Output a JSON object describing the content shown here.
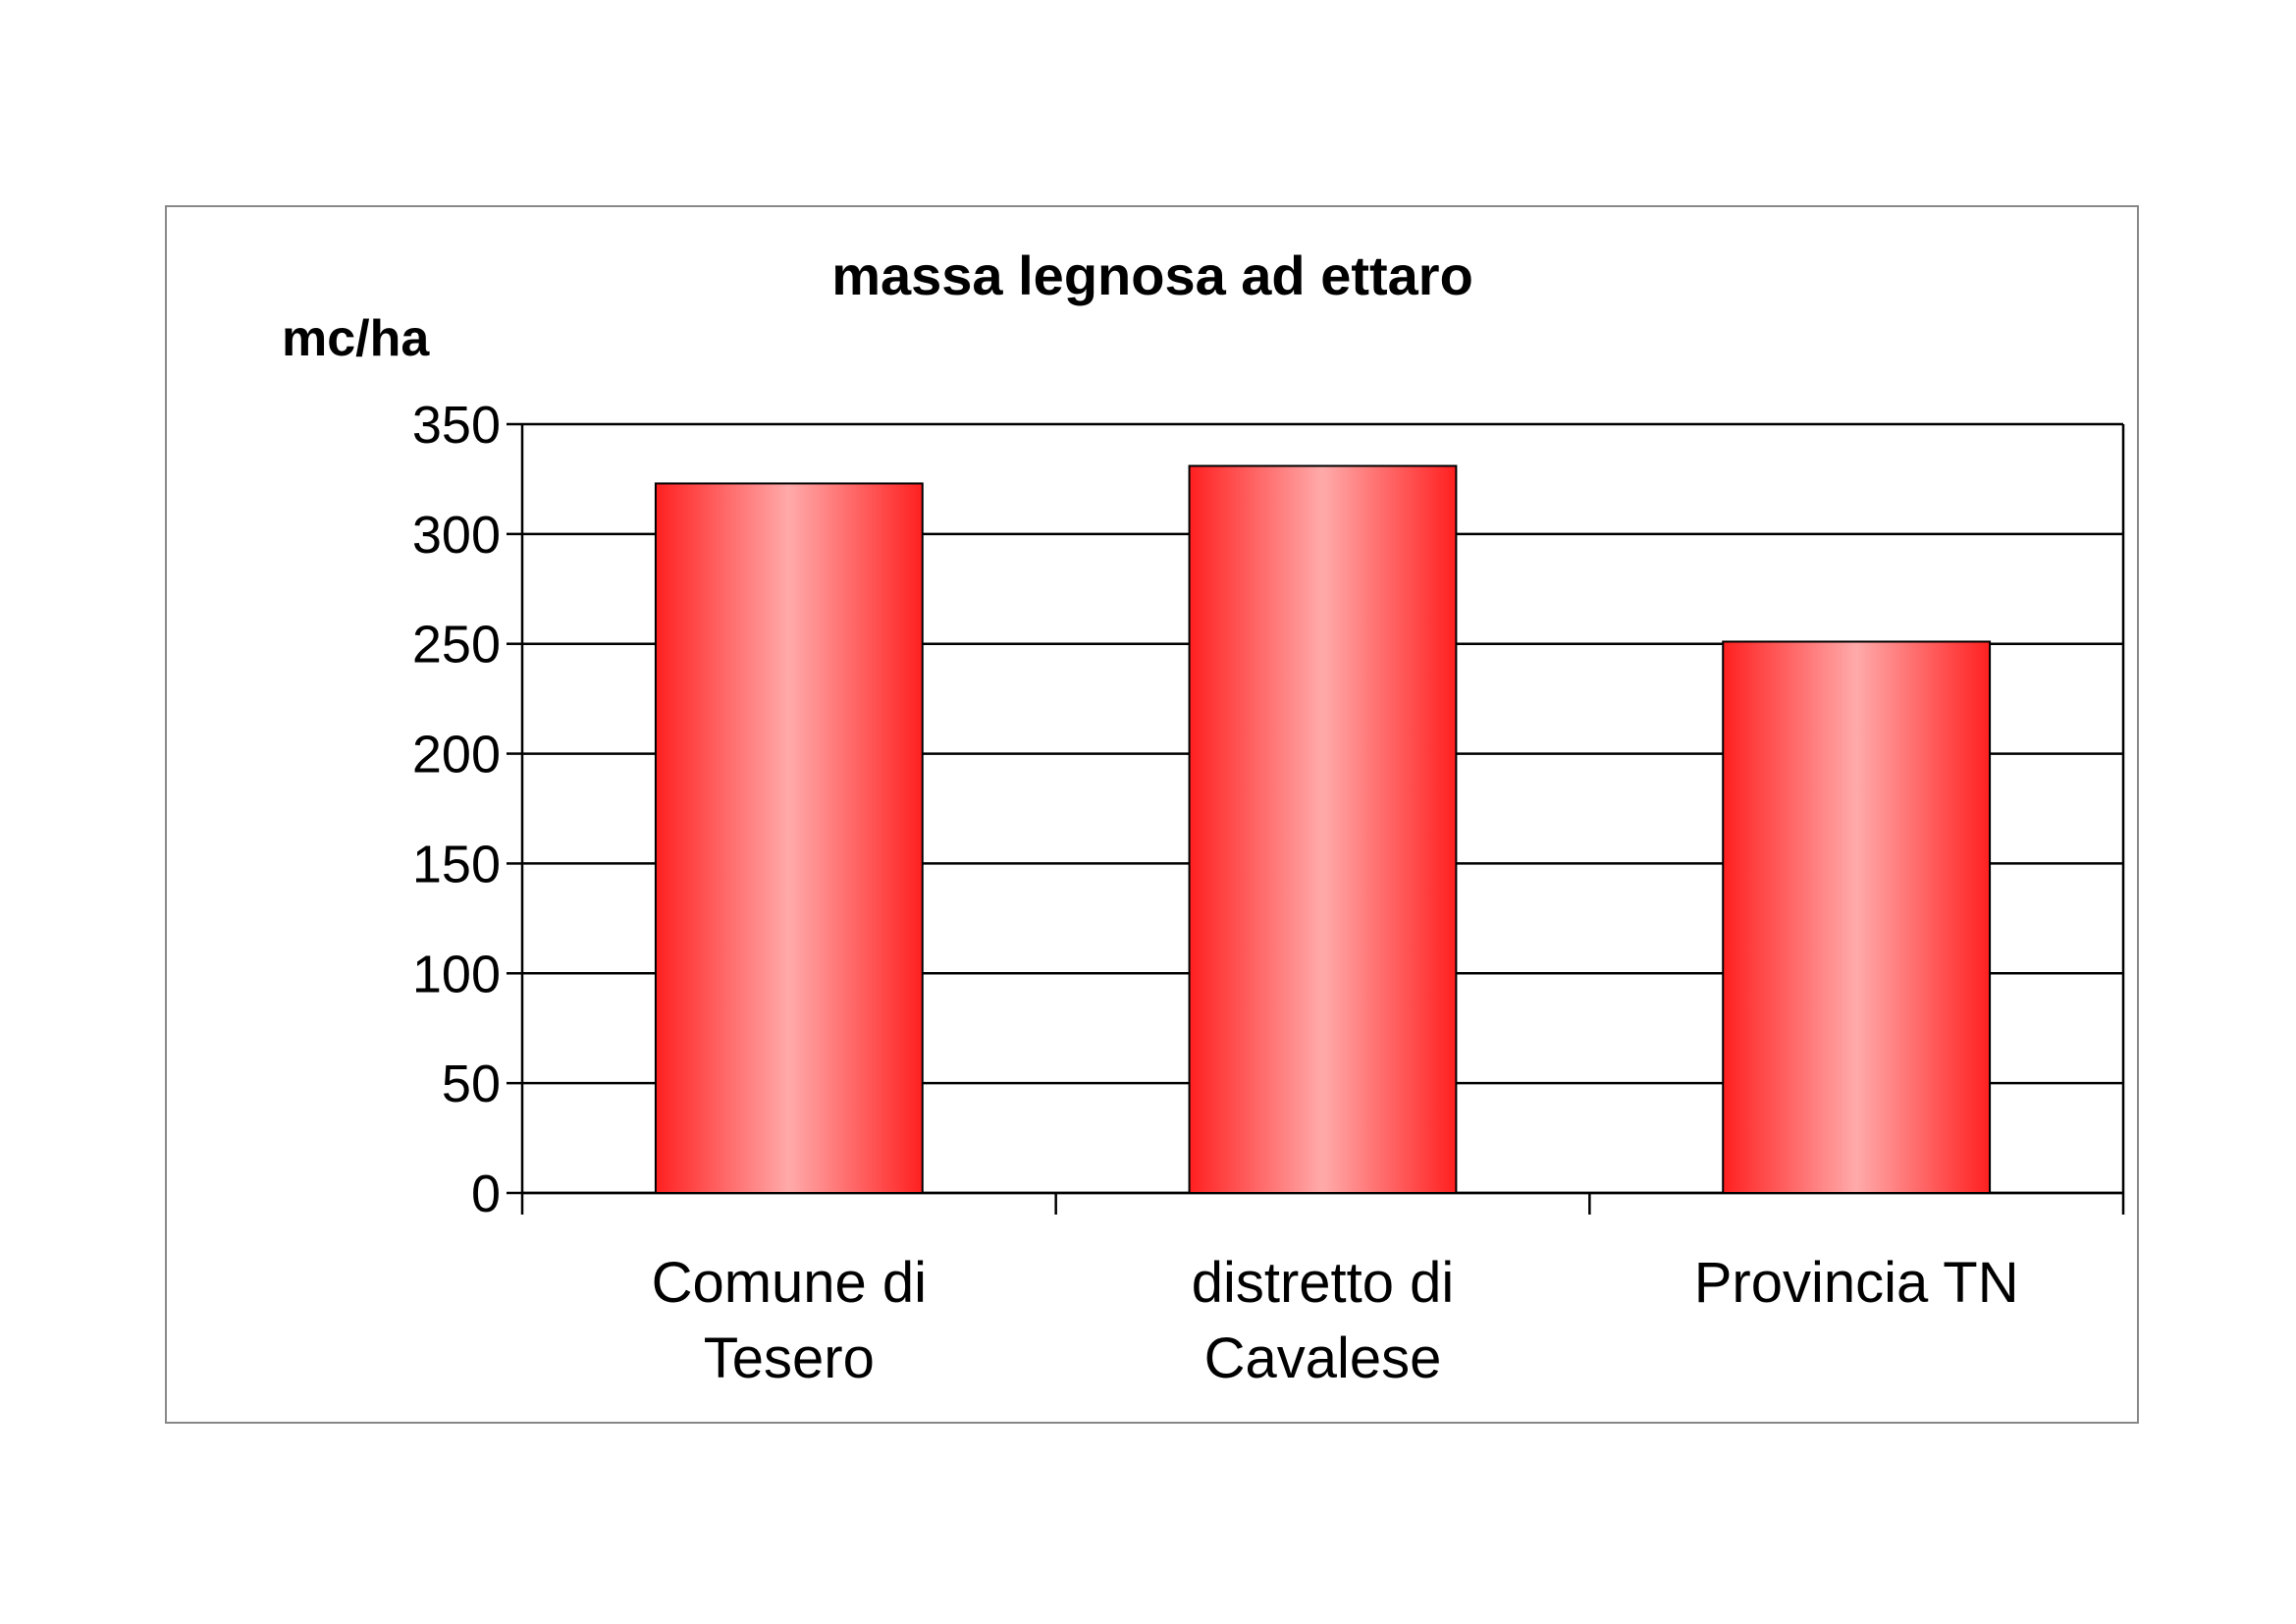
{
  "chart_data": {
    "type": "bar",
    "title": "massa legnosa ad ettaro",
    "y_label": "mc/ha",
    "categories": [
      [
        "Comune di",
        "Tesero"
      ],
      [
        "distretto di",
        "Cavalese"
      ],
      [
        "Provincia TN"
      ]
    ],
    "values": [
      323,
      331,
      251
    ],
    "color": "#ff2020",
    "ylim": [
      0,
      350
    ],
    "yticks": [
      0,
      50,
      100,
      150,
      200,
      250,
      300,
      350
    ],
    "grid": true
  }
}
